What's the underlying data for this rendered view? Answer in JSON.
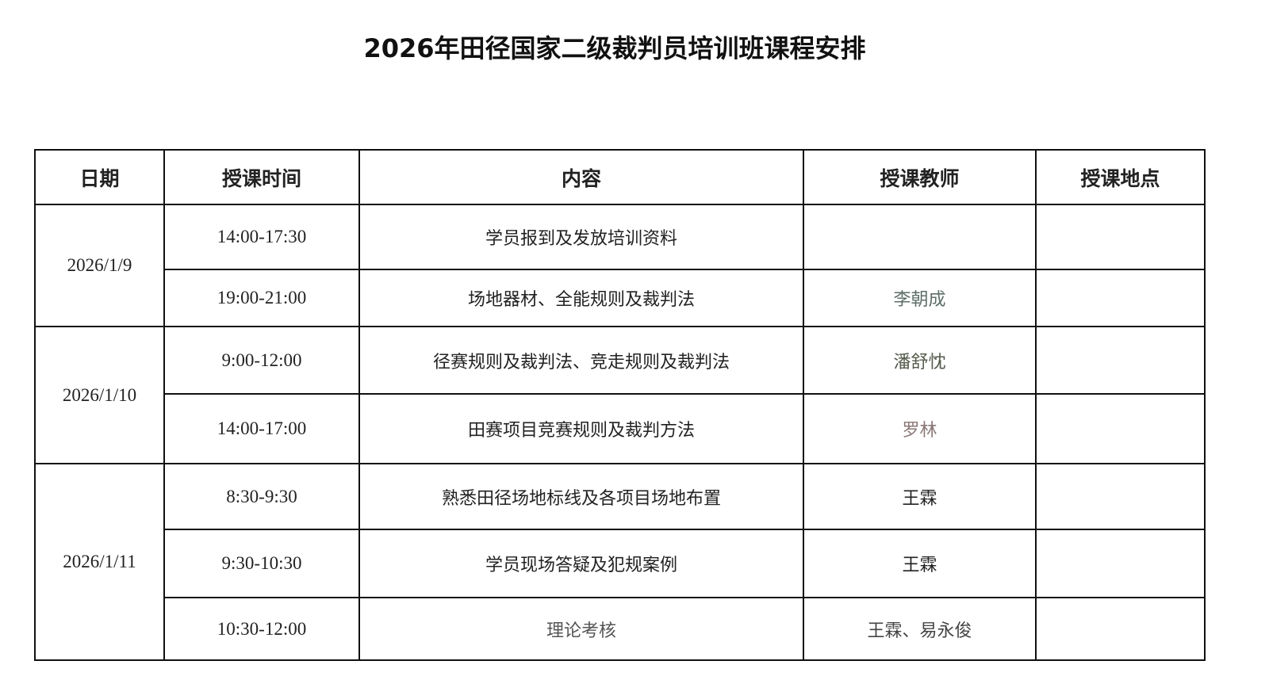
{
  "title": "2026年田径国家二级裁判员培训班课程安排",
  "headers": [
    "日期",
    "授课时间",
    "内容",
    "授课教师",
    "授课地点"
  ],
  "days": [
    {
      "date": "2026/1/9",
      "sessions": [
        {
          "time": "14:00-17:30",
          "content": "学员报到及发放培训资料",
          "teacher": "",
          "location": ""
        },
        {
          "time": "19:00-21:00",
          "content": "场地器材、全能规则及裁判法",
          "teacher": "李朝成",
          "location": ""
        }
      ]
    },
    {
      "date": "2026/1/10",
      "sessions": [
        {
          "time": "9:00-12:00",
          "content": "径赛规则及裁判法、竞走规则及裁判法",
          "teacher": "潘舒忱",
          "location": ""
        },
        {
          "time": "14:00-17:00",
          "content": "田赛项目竞赛规则及裁判方法",
          "teacher": "罗林",
          "location": ""
        }
      ]
    },
    {
      "date": "2026/1/11",
      "sessions": [
        {
          "time": "8:30-9:30",
          "content": "熟悉田径场地标线及各项目场地布置",
          "teacher": "王霖",
          "location": ""
        },
        {
          "time": "9:30-10:30",
          "content": "学员现场答疑及犯规案例",
          "teacher": "王霖",
          "location": ""
        },
        {
          "time": "10:30-12:00",
          "content": "理论考核",
          "teacher": "王霖、易永俊",
          "location": ""
        }
      ]
    }
  ]
}
